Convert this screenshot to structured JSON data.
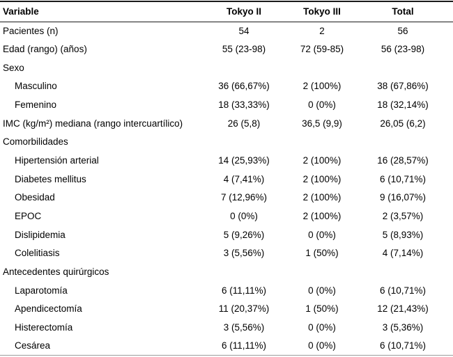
{
  "colors": {
    "text": "#000000",
    "rule_dark": "#1a1a1a",
    "rule_bottom": "#9a9a9a",
    "background": "#ffffff"
  },
  "table": {
    "columns": [
      "Variable",
      "Tokyo II",
      "Tokyo III",
      "Total"
    ],
    "rows": [
      {
        "label": "Pacientes (n)",
        "indent": false,
        "values": [
          "54",
          "2",
          "56"
        ]
      },
      {
        "label": "Edad (rango) (años)",
        "indent": false,
        "values": [
          "55 (23-98)",
          "72 (59-85)",
          "56 (23-98)"
        ]
      },
      {
        "label": "Sexo",
        "indent": false,
        "values": [
          "",
          "",
          ""
        ]
      },
      {
        "label": "Masculino",
        "indent": true,
        "values": [
          "36 (66,67%)",
          "2 (100%)",
          "38 (67,86%)"
        ]
      },
      {
        "label": "Femenino",
        "indent": true,
        "values": [
          "18 (33,33%)",
          "0 (0%)",
          "18 (32,14%)"
        ]
      },
      {
        "label": "IMC (kg/m²) mediana (rango intercuartílico)",
        "indent": false,
        "values": [
          "26 (5,8)",
          "36,5 (9,9)",
          "26,05 (6,2)"
        ]
      },
      {
        "label": "Comorbilidades",
        "indent": false,
        "values": [
          "",
          "",
          ""
        ]
      },
      {
        "label": "Hipertensión arterial",
        "indent": true,
        "values": [
          "14 (25,93%)",
          "2 (100%)",
          "16 (28,57%)"
        ]
      },
      {
        "label": "Diabetes mellitus",
        "indent": true,
        "values": [
          "4 (7,41%)",
          "2 (100%)",
          "6 (10,71%)"
        ]
      },
      {
        "label": "Obesidad",
        "indent": true,
        "values": [
          "7 (12,96%)",
          "2 (100%)",
          "9 (16,07%)"
        ]
      },
      {
        "label": "EPOC",
        "indent": true,
        "values": [
          "0 (0%)",
          "2 (100%)",
          "2 (3,57%)"
        ]
      },
      {
        "label": "Dislipidemia",
        "indent": true,
        "values": [
          "5 (9,26%)",
          "0 (0%)",
          "5 (8,93%)"
        ]
      },
      {
        "label": "Colelitiasis",
        "indent": true,
        "values": [
          "3 (5,56%)",
          "1 (50%)",
          "4 (7,14%)"
        ]
      },
      {
        "label": "Antecedentes quirúrgicos",
        "indent": false,
        "values": [
          "",
          "",
          ""
        ]
      },
      {
        "label": "Laparotomía",
        "indent": true,
        "values": [
          "6 (11,11%)",
          "0 (0%)",
          "6 (10,71%)"
        ]
      },
      {
        "label": "Apendicectomía",
        "indent": true,
        "values": [
          "11 (20,37%)",
          "1 (50%)",
          "12 (21,43%)"
        ]
      },
      {
        "label": "Histerectomía",
        "indent": true,
        "values": [
          "3 (5,56%)",
          "0 (0%)",
          "3 (5,36%)"
        ]
      },
      {
        "label": "Cesárea",
        "indent": true,
        "values": [
          "6 (11,11%)",
          "0 (0%)",
          "6 (10,71%)"
        ]
      }
    ]
  }
}
